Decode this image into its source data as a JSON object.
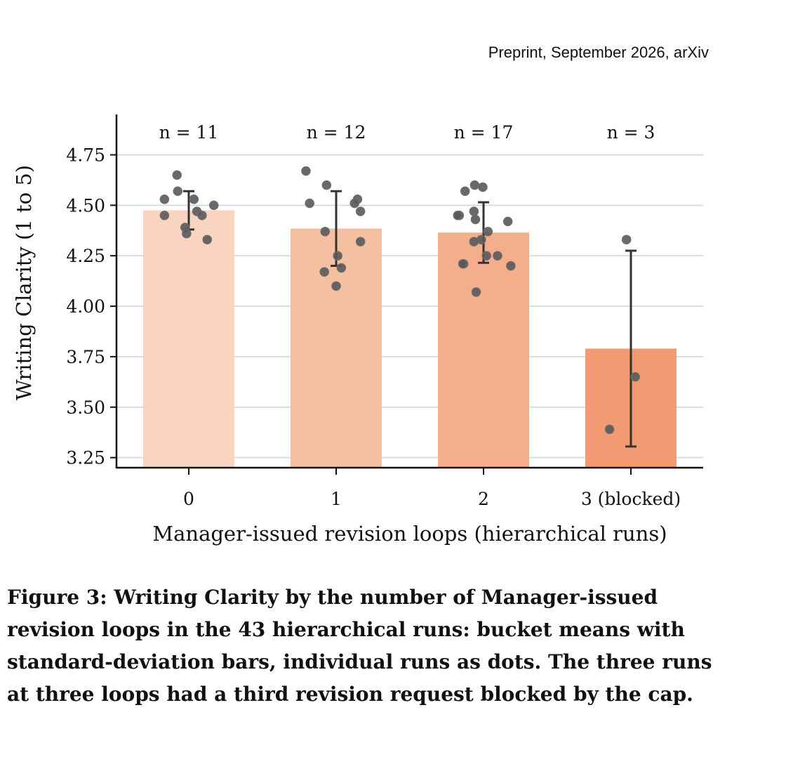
{
  "header": {
    "running_head": "Preprint, September 2026, arXiv"
  },
  "caption": "Figure 3: Writing Clarity by the number of Manager-issued revision loops in the 43 hierarchical runs: bucket means with standard-deviation bars, individual runs as dots. The three runs at three loops had a third revision request blocked by the cap.",
  "chart_data": {
    "type": "bar",
    "categories": [
      "0",
      "1",
      "2",
      "3 (blocked)"
    ],
    "xlabel": "Manager-issued revision loops (hierarchical runs)",
    "ylabel": "Writing Clarity (1 to 5)",
    "ylim": [
      3.2,
      4.95
    ],
    "yticks": [
      "3.25",
      "3.50",
      "3.75",
      "4.00",
      "4.25",
      "4.50",
      "4.75"
    ],
    "grid": true,
    "bar_colors": [
      "#f8d4c1",
      "#f5bfa2",
      "#f4ae8b",
      "#f29b72"
    ],
    "point_color": "#595959",
    "counts": [
      "n = 11",
      "n = 12",
      "n = 17",
      "n = 3"
    ],
    "means": [
      4.475,
      4.385,
      4.365,
      3.79
    ],
    "sd": [
      0.095,
      0.185,
      0.15,
      0.485
    ],
    "points": [
      [
        4.65,
        4.57,
        4.53,
        4.53,
        4.5,
        4.47,
        4.45,
        4.45,
        4.39,
        4.36,
        4.33
      ],
      [
        4.67,
        4.6,
        4.53,
        4.51,
        4.51,
        4.47,
        4.37,
        4.32,
        4.25,
        4.19,
        4.17,
        4.1
      ],
      [
        4.6,
        4.59,
        4.57,
        4.47,
        4.45,
        4.45,
        4.43,
        4.42,
        4.37,
        4.33,
        4.32,
        4.25,
        4.25,
        4.21,
        4.21,
        4.2,
        4.07
      ],
      [
        4.33,
        3.65,
        3.39
      ]
    ],
    "jitter": [
      [
        -0.16,
        -0.15,
        -0.33,
        0.07,
        0.34,
        0.11,
        -0.33,
        0.18,
        -0.05,
        -0.03,
        0.25
      ],
      [
        -0.41,
        -0.13,
        0.29,
        0.25,
        -0.36,
        0.33,
        -0.15,
        0.33,
        0.02,
        0.07,
        -0.16,
        0.0
      ],
      [
        -0.12,
        -0.01,
        -0.25,
        -0.13,
        -0.33,
        -0.35,
        -0.11,
        0.33,
        0.06,
        -0.03,
        -0.13,
        0.04,
        0.19,
        -0.27,
        -0.28,
        0.37,
        -0.1
      ],
      [
        -0.06,
        0.06,
        -0.29
      ]
    ]
  }
}
